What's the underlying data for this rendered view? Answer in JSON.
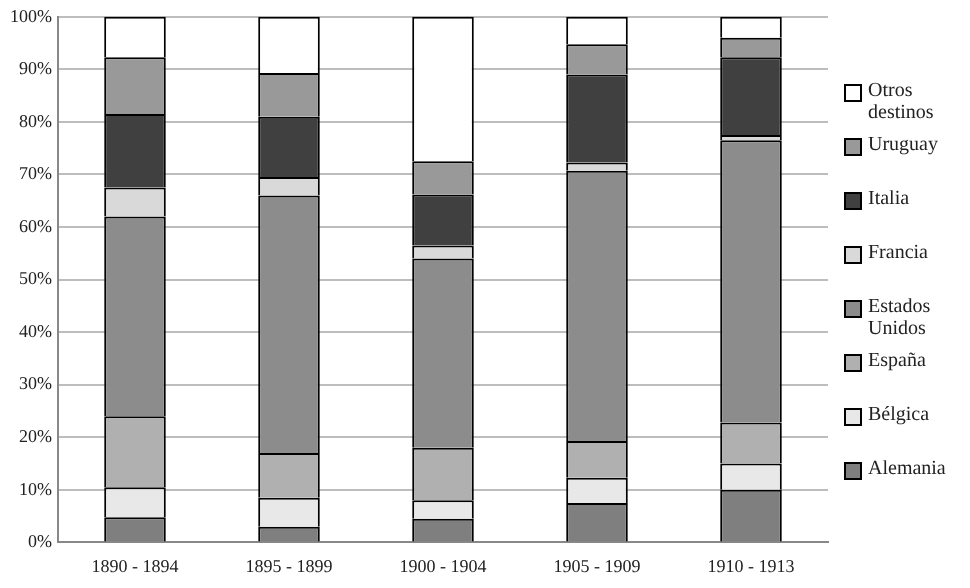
{
  "chart_data": {
    "type": "bar",
    "stacked": true,
    "categories": [
      "1890 - 1894",
      "1895 - 1899",
      "1900 - 1904",
      "1905 - 1909",
      "1910 - 1913"
    ],
    "series": [
      {
        "name": "Alemania",
        "color": "#7f7f7f",
        "values": [
          4.8,
          3,
          4.5,
          7.5,
          10
        ]
      },
      {
        "name": "Bélgica",
        "color": "#e8e8e8",
        "values": [
          5.7,
          5.5,
          3.5,
          4.8,
          5
        ]
      },
      {
        "name": "España",
        "color": "#b0b0b0",
        "values": [
          13.5,
          8.5,
          10,
          7,
          7.8
        ]
      },
      {
        "name": "Estados Unidos",
        "color": "#8c8c8c",
        "values": [
          38,
          49,
          36,
          51.4,
          53.7
        ]
      },
      {
        "name": "Francia",
        "color": "#d9d9d9",
        "values": [
          5.5,
          3.5,
          2.5,
          1.6,
          1
        ]
      },
      {
        "name": "Italia",
        "color": "#404040",
        "values": [
          14,
          11.5,
          9.7,
          16.7,
          14.8
        ]
      },
      {
        "name": "Uruguay",
        "color": "#999999",
        "values": [
          10.8,
          8.3,
          6.3,
          5.8,
          3.7
        ]
      },
      {
        "name": "Otros destinos",
        "color": "#ffffff",
        "values": [
          7.7,
          10.7,
          27.5,
          5.2,
          4
        ]
      }
    ],
    "ylim": [
      0,
      100
    ],
    "yticks": [
      {
        "value": 0,
        "label": "0%"
      },
      {
        "value": 10,
        "label": "10%"
      },
      {
        "value": 20,
        "label": "20%"
      },
      {
        "value": 30,
        "label": "30%"
      },
      {
        "value": 40,
        "label": "40%"
      },
      {
        "value": 50,
        "label": "50%"
      },
      {
        "value": 60,
        "label": "60%"
      },
      {
        "value": 70,
        "label": "70%"
      },
      {
        "value": 80,
        "label": "80%"
      },
      {
        "value": 90,
        "label": "90%"
      },
      {
        "value": 100,
        "label": "100%"
      }
    ],
    "grid": "y",
    "legend": "right"
  }
}
